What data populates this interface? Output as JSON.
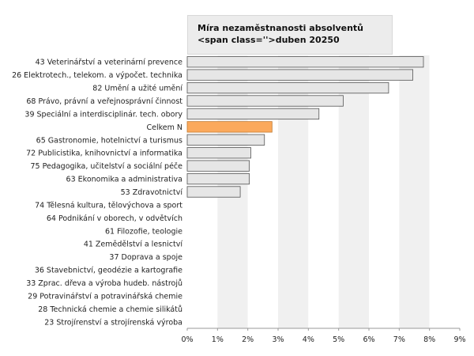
{
  "chart_data": {
    "type": "bar",
    "orientation": "horizontal",
    "title": "Míra nezaměstnanosti absolventů <span class=''>duben 20250",
    "categories": [
      "43 Veterinářství a veterinární prevence",
      "26 Elektrotech., telekom. a výpočet. technika",
      "82 Umění a užité umění",
      "68 Právo, právní a veřejnosprávní činnost",
      "39 Speciální a interdisciplinár. tech. obory",
      "Celkem N",
      "65 Gastronomie, hotelnictví a turismus",
      "72 Publicistika, knihovnictví a informatika",
      "75 Pedagogika, učitelství a sociální péče",
      "63 Ekonomika a administrativa",
      "53 Zdravotnictví",
      "74 Tělesná kultura, tělovýchova a sport",
      "64 Podnikání v oborech, v odvětvích",
      "61 Filozofie, teologie",
      "41 Zemědělství a lesnictví",
      "37 Doprava a spoje",
      "36 Stavebnictví, geodézie a kartografie",
      "33 Zprac. dřeva a výroba hudeb. nástrojů",
      "29 Potravinářství a potravinářská chemie",
      "28 Technická chemie a chemie silikátů",
      "23 Strojírenství a strojírenská výroba"
    ],
    "values": [
      7.8,
      7.45,
      6.65,
      5.15,
      4.35,
      2.8,
      2.55,
      2.1,
      2.05,
      2.05,
      1.75,
      0,
      0,
      0,
      0,
      0,
      0,
      0,
      0,
      0,
      0
    ],
    "highlight_index": 5,
    "xlim": [
      0,
      9
    ],
    "x_ticks": [
      "0%",
      "1%",
      "2%",
      "3%",
      "4%",
      "5%",
      "6%",
      "7%",
      "8%",
      "9%"
    ],
    "grid": "alternating bands",
    "colors": {
      "bar": "#e6e6e6",
      "bar_border": "#555555",
      "highlight": "#fba95c",
      "highlight_border": "#c07b33",
      "band": "#f0f0f0"
    }
  }
}
